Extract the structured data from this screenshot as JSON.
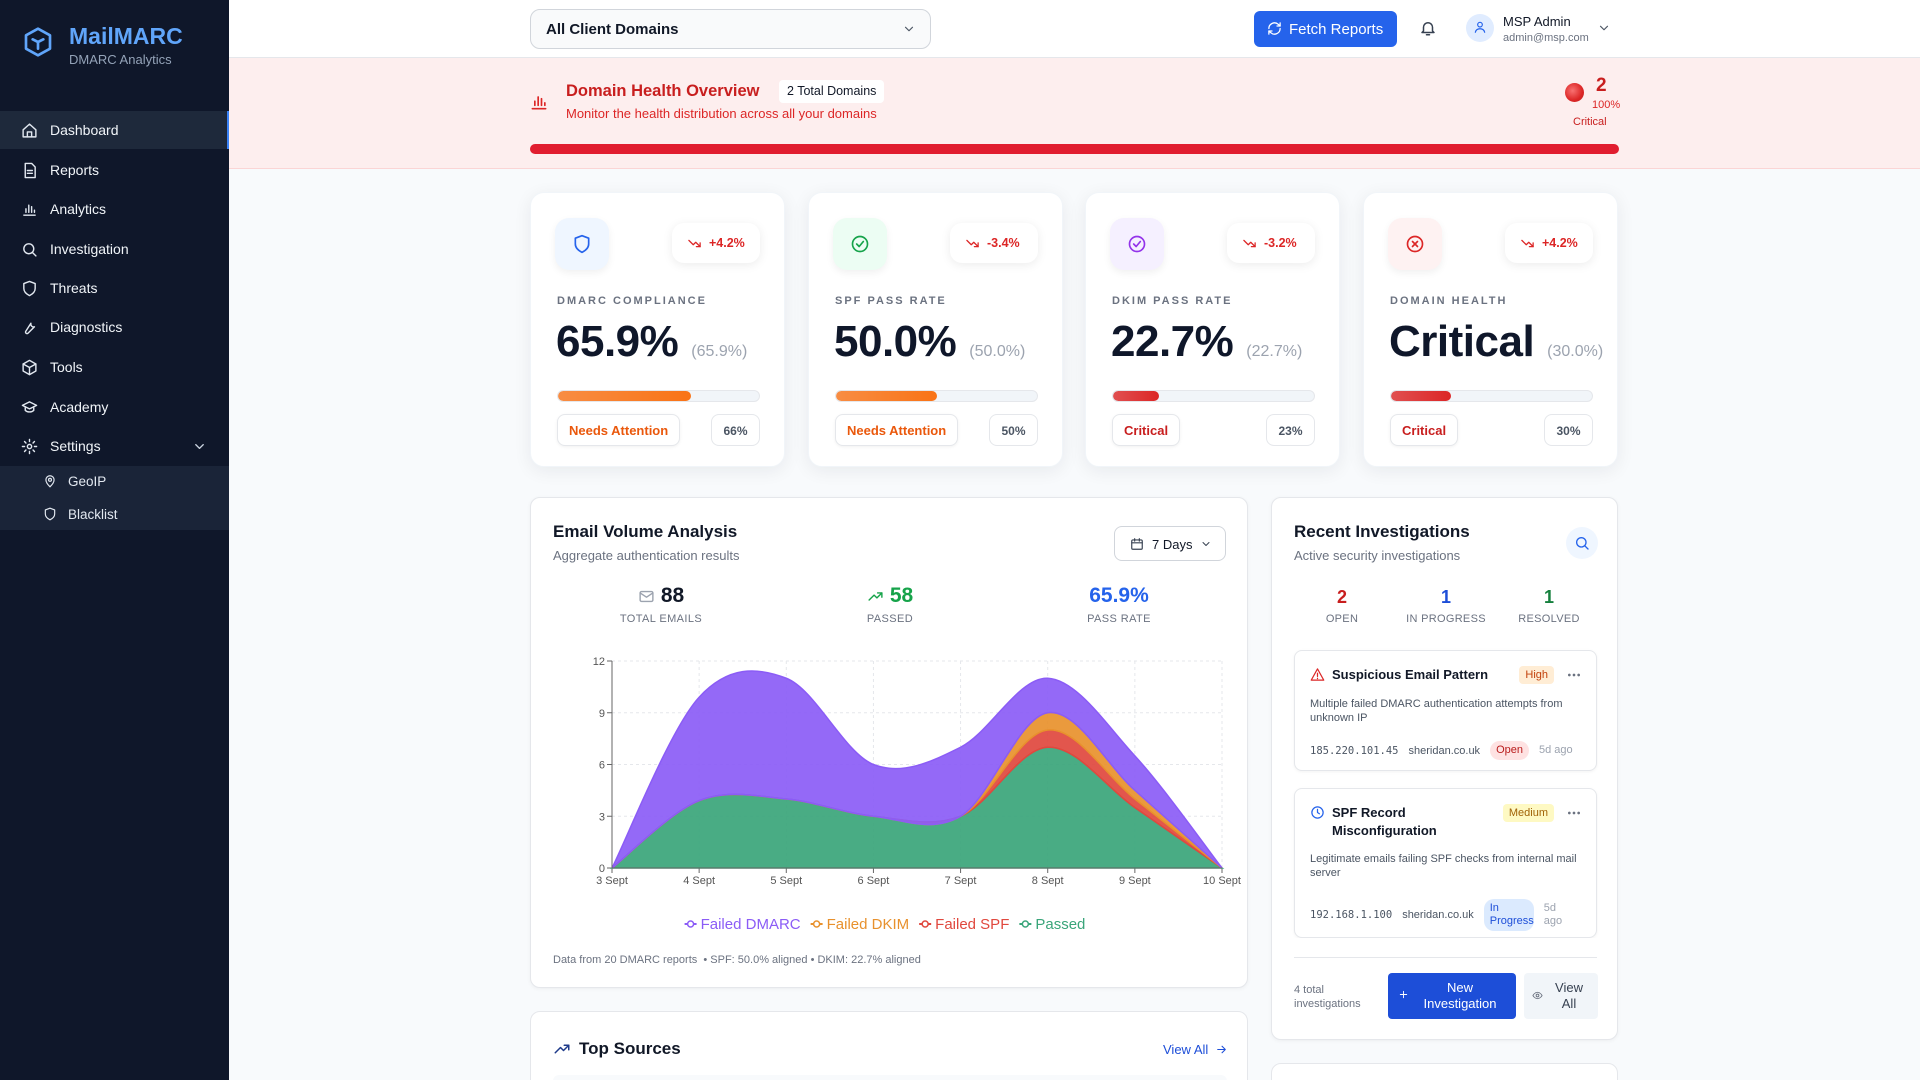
{
  "sidebar": {
    "brand": "MailMARC",
    "tagline": "DMARC Analytics",
    "nav": [
      "Dashboard",
      "Reports",
      "Analytics",
      "Investigation",
      "Threats",
      "Diagnostics",
      "Tools",
      "Academy",
      "Settings"
    ],
    "subnav": [
      "GeoIP",
      "Blacklist"
    ]
  },
  "header": {
    "domain_select": "All Client Domains",
    "fetch_button": "Fetch Reports",
    "user_name": "MSP Admin",
    "user_email": "admin@msp.com"
  },
  "banner": {
    "title": "Domain Health Overview",
    "badge": "2 Total Domains",
    "subtitle": "Monitor the health distribution across all your domains",
    "critical_count": 2,
    "critical_share": "100%",
    "critical_label": "Critical"
  },
  "metrics": [
    {
      "label": "DMARC COMPLIANCE",
      "value": "65.9%",
      "compare": "(65.9%)",
      "change": "+4.2%",
      "status": "Needs Attention",
      "color": "#f97316",
      "progress": {
        "value": 66,
        "label": "66%"
      }
    },
    {
      "label": "SPF PASS RATE",
      "value": "50.0%",
      "compare": "(50.0%)",
      "change": "-3.4%",
      "status": "Needs Attention",
      "color": "#f97316",
      "progress": {
        "value": 50,
        "label": "50%"
      }
    },
    {
      "label": "DKIM PASS RATE",
      "value": "22.7%",
      "compare": "(22.7%)",
      "change": "-3.2%",
      "status": "Critical",
      "color": "#dc2626",
      "progress": {
        "value": 23,
        "label": "23%"
      }
    },
    {
      "label": "DOMAIN HEALTH",
      "value": "Critical",
      "compare": "(30.0%)",
      "change": "+4.2%",
      "status": "Critical",
      "color": "#dc2626",
      "progress": {
        "value": 30,
        "label": "30%"
      }
    }
  ],
  "volume": {
    "title": "Email Volume Analysis",
    "subtitle": "Aggregate authentication results",
    "range": "7 Days",
    "stats": [
      {
        "value": 88,
        "label": "TOTAL EMAILS"
      },
      {
        "value": 58,
        "label": "PASSED"
      },
      {
        "value": "65.9%",
        "label": "PASS RATE"
      }
    ],
    "footnote": "Data from 20 DMARC reports  • SPF: 50.0% aligned • DKIM: 22.7% aligned"
  },
  "chart_data": {
    "type": "area",
    "stacked": true,
    "grid": true,
    "categories": [
      "3 Sept",
      "4 Sept",
      "5 Sept",
      "6 Sept",
      "7 Sept",
      "8 Sept",
      "9 Sept",
      "10 Sept"
    ],
    "series": [
      {
        "name": "Failed DMARC",
        "color": "#8b5cf6",
        "values": [
          0,
          6,
          7,
          3,
          4,
          2,
          2,
          0
        ]
      },
      {
        "name": "Failed DKIM",
        "color": "#e8912d",
        "values": [
          0,
          0,
          0,
          0,
          0,
          1,
          0.5,
          0
        ]
      },
      {
        "name": "Failed SPF",
        "color": "#e0483e",
        "values": [
          0,
          0,
          0,
          0,
          0,
          1,
          0.5,
          0
        ]
      },
      {
        "name": "Passed",
        "color": "#3aa57a",
        "values": [
          0,
          3.9,
          4,
          3,
          3,
          7,
          3.5,
          0
        ]
      }
    ],
    "ylim": [
      0,
      12
    ],
    "yticks": [
      0,
      3,
      6,
      9,
      12
    ]
  },
  "investigations": {
    "title": "Recent Investigations",
    "subtitle": "Active security investigations",
    "counts": [
      {
        "value": 2,
        "label": "OPEN"
      },
      {
        "value": 1,
        "label": "IN PROGRESS"
      },
      {
        "value": 1,
        "label": "RESOLVED"
      }
    ],
    "items": [
      {
        "title": "Suspicious Email Pattern",
        "severity": "High",
        "description": "Multiple failed DMARC authentication attempts from unknown IP",
        "ip": "185.220.101.45",
        "domain": "sheridan.co.uk",
        "status": "Open",
        "time": "5d ago"
      },
      {
        "title": "SPF Record Misconfiguration",
        "severity": "Medium",
        "description": "Legitimate emails failing SPF checks from internal mail server",
        "ip": "192.168.1.100",
        "domain": "sheridan.co.uk",
        "status": "In Progress",
        "time": "5d ago"
      }
    ],
    "total": "4 total investigations",
    "new_button": "New Investigation",
    "view_all": "View All"
  },
  "top_sources": {
    "title": "Top Sources",
    "view_all": "View All"
  }
}
